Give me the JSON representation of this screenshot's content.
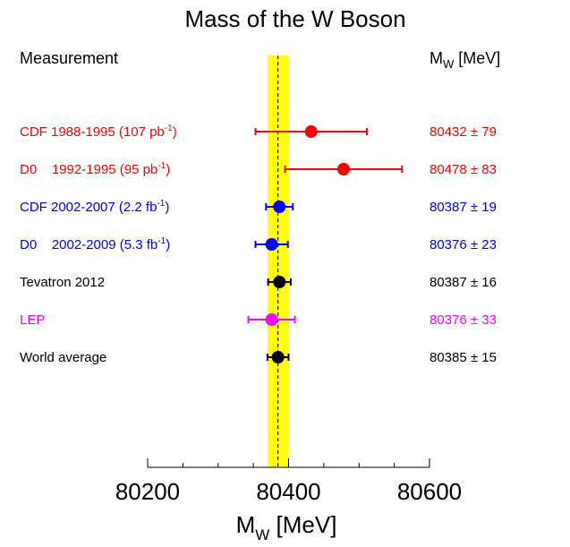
{
  "chart_data": {
    "type": "scatter",
    "title": "Mass of the W Boson",
    "column_left": "Measurement",
    "column_right": {
      "main": "M",
      "sub": "W",
      "unit": " [MeV]"
    },
    "xlabel": {
      "main": "M",
      "sub": "W",
      "unit": " [MeV]"
    },
    "xlim": [
      80200,
      80600
    ],
    "xticks": [
      80200,
      80400,
      80600
    ],
    "xtick_labels": [
      "80200",
      "80400",
      "80600"
    ],
    "band": {
      "center": 80385,
      "halfwidth": 15,
      "color": "#ffff00"
    },
    "grid": false,
    "points": [
      {
        "label_pre": "CDF 1988-1995 (107 pb",
        "label_sup": "-1",
        "label_post": ")",
        "value_text": "80432 ± 79",
        "x": 80432,
        "err": 79,
        "color": "#ff0000"
      },
      {
        "label_pre": "D0    1992-1995 (95 pb",
        "label_sup": "-1",
        "label_post": ")",
        "value_text": "80478 ± 83",
        "x": 80478,
        "err": 83,
        "color": "#ff0000"
      },
      {
        "label_pre": "CDF 2002-2007 (2.2 fb",
        "label_sup": "-1",
        "label_post": ")",
        "value_text": "80387 ± 19",
        "x": 80387,
        "err": 19,
        "color": "#0000ff"
      },
      {
        "label_pre": "D0    2002-2009 (5.3 fb",
        "label_sup": "-1",
        "label_post": ")",
        "value_text": "80376 ± 23",
        "x": 80376,
        "err": 23,
        "color": "#0000ff"
      },
      {
        "label_pre": "Tevatron 2012",
        "label_sup": "",
        "label_post": "",
        "value_text": "80387 ± 16",
        "x": 80387,
        "err": 16,
        "color": "#000000"
      },
      {
        "label_pre": "LEP",
        "label_sup": "",
        "label_post": "",
        "value_text": "80376 ± 33",
        "x": 80376,
        "err": 33,
        "color": "#ff00ff"
      },
      {
        "label_pre": "World average",
        "label_sup": "",
        "label_post": "",
        "value_text": "80385 ± 15",
        "x": 80385,
        "err": 15,
        "color": "#000000"
      }
    ]
  }
}
